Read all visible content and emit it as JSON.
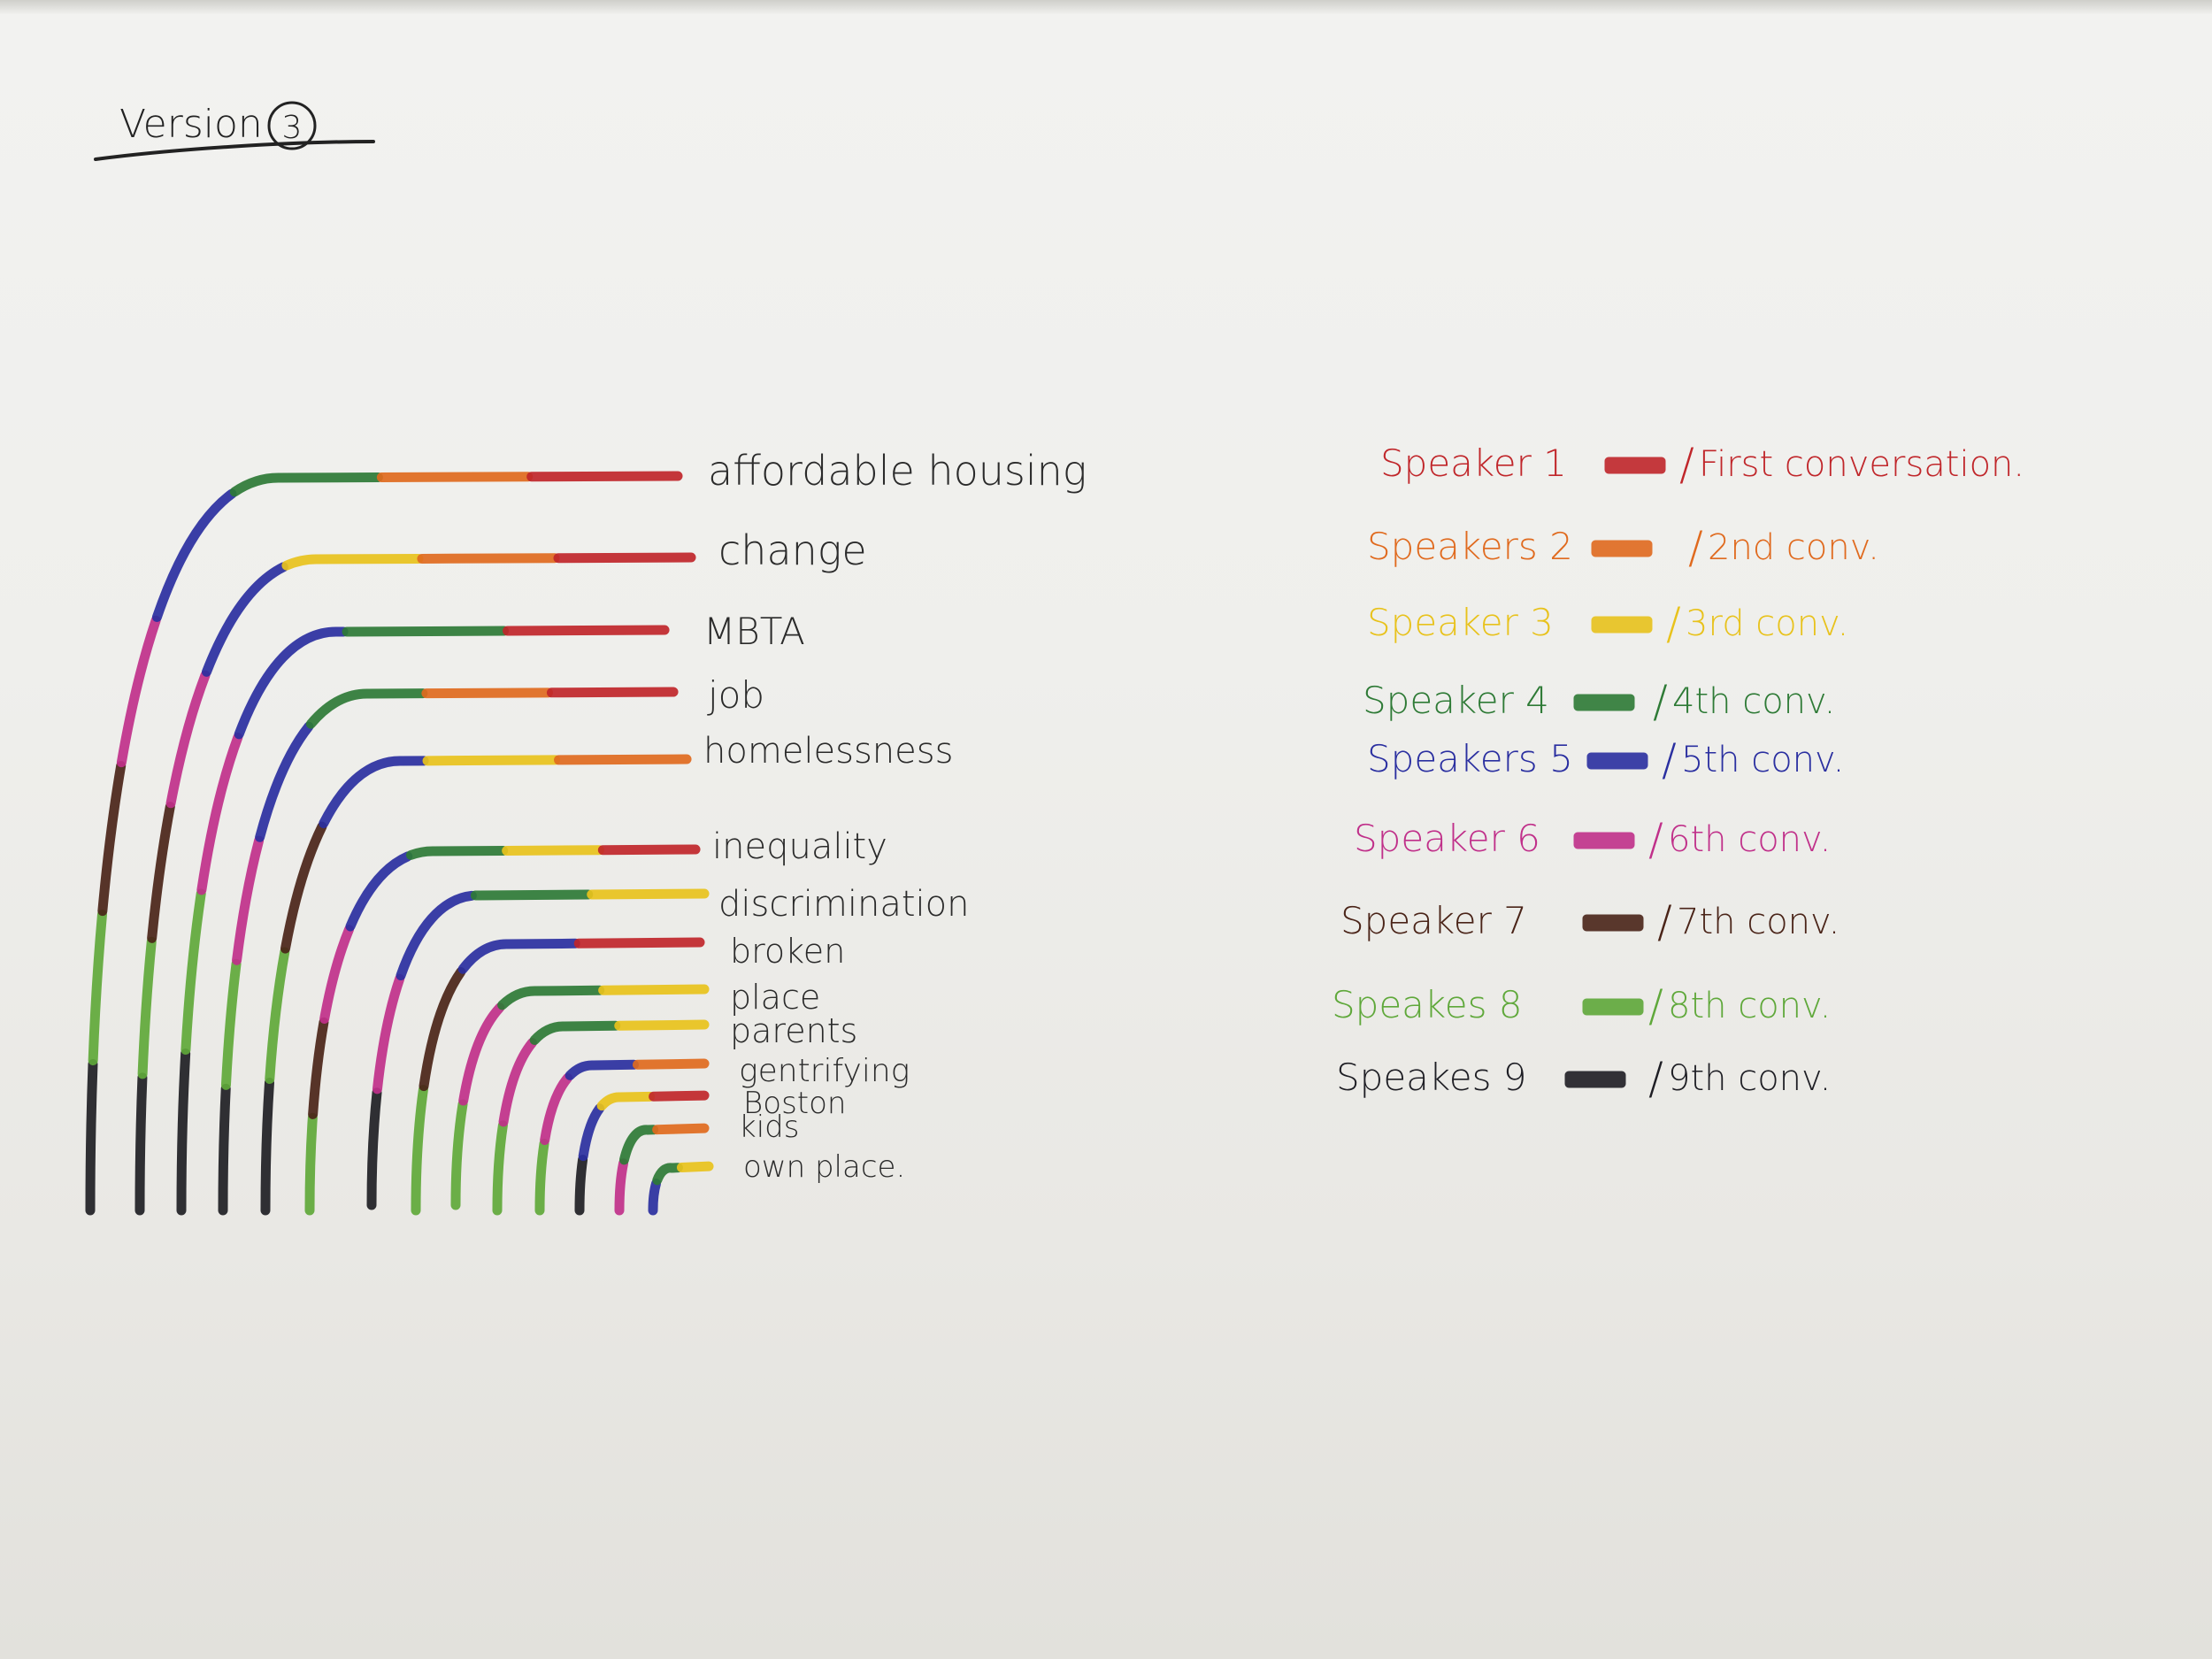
{
  "title": "Version",
  "version_number": "3",
  "speakers": [
    {
      "id": 1,
      "name": "Speaker 1",
      "conversation": "First conversation.",
      "color": "#c0262a"
    },
    {
      "id": 2,
      "name": "Speakers 2",
      "conversation": "2nd conv.",
      "color": "#e06a1e"
    },
    {
      "id": 3,
      "name": "Speaker 3",
      "conversation": "3rd conv.",
      "color": "#e8c21c"
    },
    {
      "id": 4,
      "name": "Speaker 4",
      "conversation": "4th conv.",
      "color": "#2e7a36"
    },
    {
      "id": 5,
      "name": "Speakers 5",
      "conversation": "5th conv.",
      "color": "#2a2fa0"
    },
    {
      "id": 6,
      "name": "Speaker 6",
      "conversation": "6th conv.",
      "color": "#c0308a"
    },
    {
      "id": 7,
      "name": "Speaker 7",
      "conversation": "7th conv.",
      "color": "#4a2418"
    },
    {
      "id": 8,
      "name": "Speakes 8",
      "conversation": "8th conv.",
      "color": "#5fa83a"
    },
    {
      "id": 9,
      "name": "Speakes 9",
      "conversation": "9th conv.",
      "color": "#1e1e24"
    }
  ],
  "topics": [
    {
      "label": "affordable housing",
      "segments": [
        9,
        8,
        7,
        6,
        5,
        4,
        2,
        1
      ]
    },
    {
      "label": "change",
      "segments": [
        9,
        8,
        7,
        6,
        5,
        3,
        2,
        1
      ]
    },
    {
      "label": "MBTA",
      "segments": [
        9,
        8,
        6,
        5,
        4,
        1
      ]
    },
    {
      "label": "job",
      "segments": [
        9,
        8,
        6,
        5,
        4,
        2,
        1
      ]
    },
    {
      "label": "homelessness",
      "segments": [
        9,
        8,
        7,
        5,
        3,
        2
      ]
    },
    {
      "label": "inequality",
      "segments": [
        8,
        7,
        6,
        5,
        4,
        3,
        1
      ]
    },
    {
      "label": "discrimination",
      "segments": [
        9,
        6,
        5,
        4,
        3
      ]
    },
    {
      "label": "broken",
      "segments": [
        8,
        7,
        5,
        1
      ]
    },
    {
      "label": "place",
      "segments": [
        8,
        6,
        4,
        3
      ]
    },
    {
      "label": "parents",
      "segments": [
        8,
        6,
        4,
        3
      ]
    },
    {
      "label": "gentrifying",
      "segments": [
        8,
        6,
        5,
        2
      ]
    },
    {
      "label": "Boston",
      "segments": [
        9,
        5,
        3,
        1
      ]
    },
    {
      "label": "kids",
      "segments": [
        6,
        4,
        2
      ]
    },
    {
      "label": "own place.",
      "segments": [
        5,
        4,
        3
      ]
    }
  ]
}
